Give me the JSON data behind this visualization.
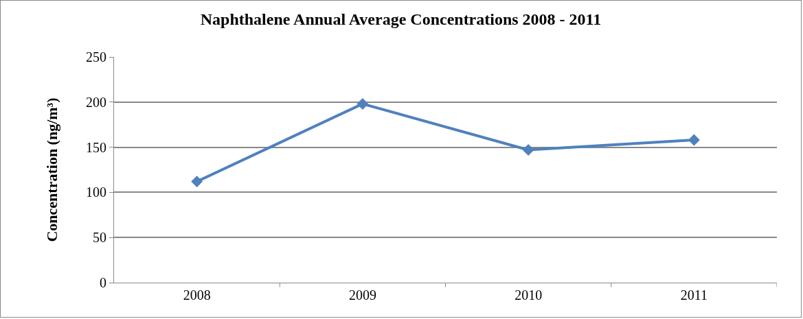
{
  "chart_data": {
    "type": "line",
    "title": "Naphthalene Annual Average Concentrations 2008 - 2011",
    "ylabel": "Concentration (ng/m³)",
    "categories": [
      "2008",
      "2009",
      "2010",
      "2011"
    ],
    "series": [
      {
        "color": "#4f81bd",
        "values": [
          112,
          198,
          147,
          158
        ]
      }
    ],
    "ylim": [
      0,
      250
    ],
    "yticks": [
      0,
      50,
      100,
      150,
      200,
      250
    ],
    "grid": "y",
    "marker": "diamond",
    "line_style": "solid"
  }
}
